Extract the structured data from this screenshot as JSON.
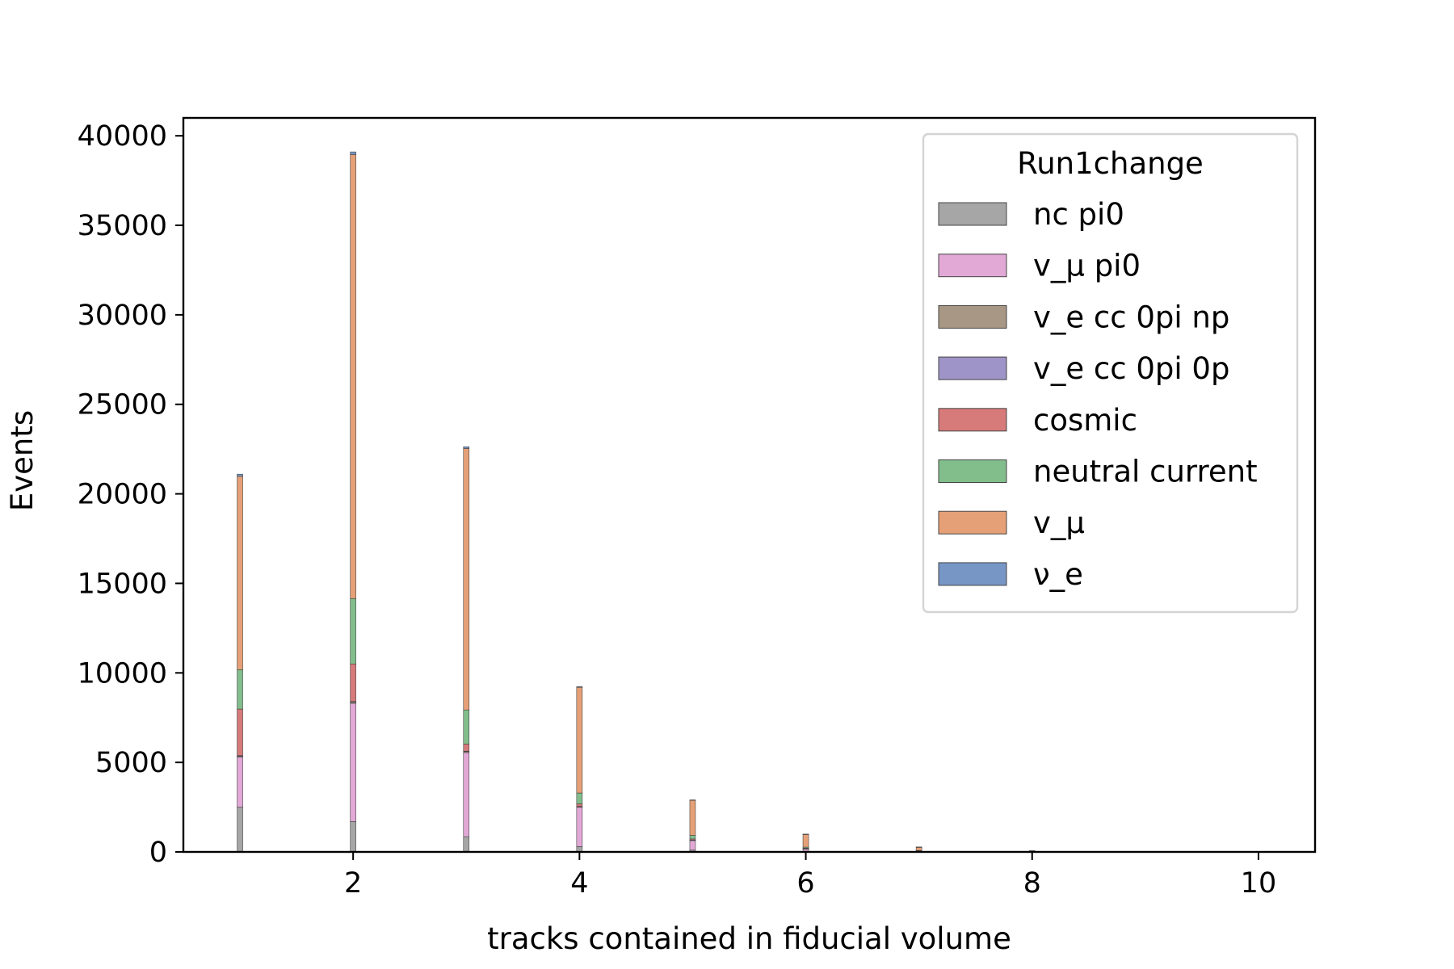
{
  "chart_data": {
    "type": "bar",
    "stacked": true,
    "xlabel": "tracks contained in fiducial volume",
    "ylabel": "Events",
    "xlim": [
      0.5,
      10.5
    ],
    "ylim": [
      0,
      41000
    ],
    "xticks": [
      2,
      4,
      6,
      8,
      10
    ],
    "yticks": [
      0,
      5000,
      10000,
      15000,
      20000,
      25000,
      30000,
      35000,
      40000
    ],
    "grid": false,
    "legend_title": "Run1change",
    "legend_position": "top-right",
    "x": [
      1,
      2,
      3,
      4,
      5,
      6,
      7,
      8
    ],
    "series": [
      {
        "name": "nc pi0",
        "color": "#a6a6a6",
        "values": [
          2500,
          1700,
          850,
          300,
          100,
          30,
          10,
          2
        ]
      },
      {
        "name": "v_μ pi0",
        "color": "#e2a8d6",
        "values": [
          2800,
          6600,
          4700,
          2200,
          550,
          150,
          40,
          10
        ]
      },
      {
        "name": "v_e cc 0pi np",
        "color": "#a89784",
        "values": [
          50,
          70,
          60,
          30,
          10,
          5,
          2,
          0
        ]
      },
      {
        "name": "v_e cc 0pi 0p",
        "color": "#9f94c8",
        "values": [
          30,
          30,
          20,
          10,
          5,
          2,
          1,
          0
        ]
      },
      {
        "name": "cosmic",
        "color": "#d67a7a",
        "values": [
          2600,
          2100,
          400,
          150,
          60,
          20,
          10,
          2
        ]
      },
      {
        "name": "neutral current",
        "color": "#82be8c",
        "values": [
          2200,
          3650,
          1900,
          600,
          200,
          60,
          20,
          5
        ]
      },
      {
        "name": "v_μ",
        "color": "#e6a077",
        "values": [
          10800,
          24800,
          14600,
          5900,
          1960,
          720,
          190,
          45
        ]
      },
      {
        "name": "ν_e",
        "color": "#7796c6",
        "values": [
          120,
          150,
          100,
          50,
          20,
          8,
          3,
          1
        ]
      }
    ]
  }
}
